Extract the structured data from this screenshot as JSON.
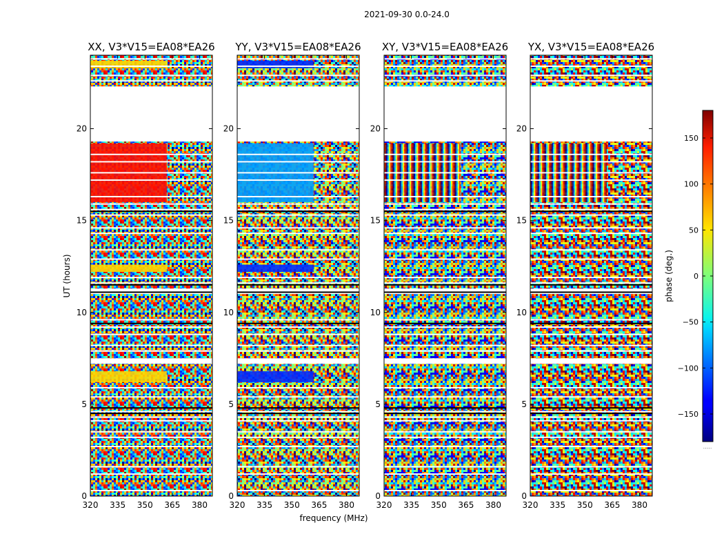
{
  "figure": {
    "suptitle": "2021-09-30 0.0-24.0",
    "xlabel": "frequency (MHz)",
    "ylabel": "UT (hours)"
  },
  "colorbar": {
    "label": "phase (deg.)",
    "range": [
      -180,
      180
    ],
    "ticks": [
      150,
      100,
      50,
      0,
      -50,
      -100,
      -150
    ],
    "tick_labels": [
      "150",
      "100",
      "50",
      "0",
      "−50",
      "−100",
      "−150"
    ],
    "footnote": "....."
  },
  "chart_data": {
    "type": "heatmap",
    "colormap": "jet",
    "xlim": [
      320,
      387
    ],
    "ylim": [
      0,
      24
    ],
    "xticks": [
      320,
      335,
      350,
      365,
      380
    ],
    "yticks": [
      0,
      5,
      10,
      15,
      20
    ],
    "no_data_hours": [
      [
        19.3,
        22.3
      ],
      [
        7.2,
        7.5
      ],
      [
        11.0,
        11.3
      ]
    ],
    "panels": [
      {
        "title": "XX, V3*V15=EA08*EA26",
        "coherent_phase_deg": {
          "early": 60,
          "mid": 60,
          "late": 130
        }
      },
      {
        "title": "YY, V3*V15=EA08*EA26",
        "coherent_phase_deg": {
          "early": -120,
          "mid": -120,
          "late": -80
        }
      },
      {
        "title": "XY, V3*V15=EA08*EA26",
        "coherent_phase_deg": null
      },
      {
        "title": "YX, V3*V15=EA08*EA26",
        "coherent_phase_deg": null
      }
    ]
  }
}
